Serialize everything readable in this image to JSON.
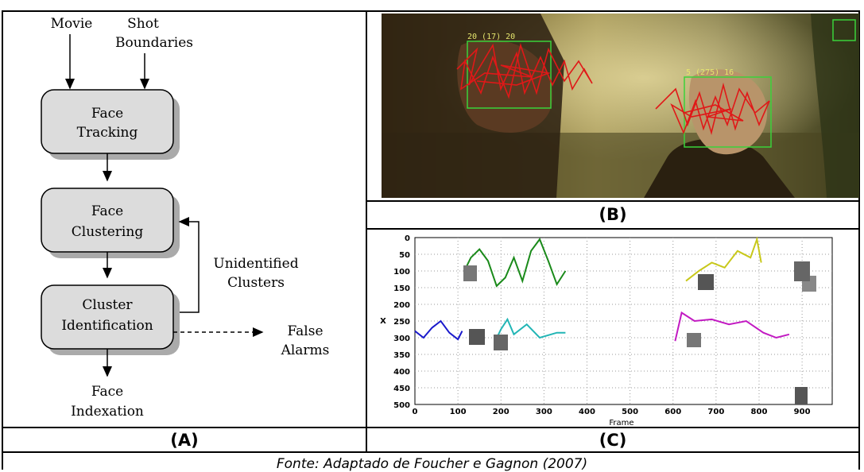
{
  "flowchart": {
    "inputs": [
      "Movie",
      "Shot",
      "Boundaries"
    ],
    "boxes": {
      "face_tracking": [
        "Face",
        "Tracking"
      ],
      "face_clustering": [
        "Face",
        "Clustering"
      ],
      "cluster_identification": [
        "Cluster",
        "Identification"
      ]
    },
    "feedback_label": [
      "Unidentified",
      "Clusters"
    ],
    "false_alarms": [
      "False",
      "Alarms"
    ],
    "output": [
      "Face",
      "Indexation"
    ]
  },
  "photo": {
    "track_labels": [
      "20 (17) 20",
      "5 (275) 16"
    ]
  },
  "captions": {
    "a": "(A)",
    "b": "(B)",
    "c": "(C)"
  },
  "source": "Fonte: Adaptado de Foucher e Gagnon (2007)",
  "chart_data": {
    "type": "line",
    "xlabel": "Frame",
    "ylabel": "X",
    "xlim": [
      0,
      970
    ],
    "ylim": [
      500,
      0
    ],
    "x_ticks": [
      "0",
      "100",
      "200",
      "300",
      "400",
      "500",
      "600",
      "700",
      "800",
      "900"
    ],
    "y_ticks": [
      "0",
      "50",
      "100",
      "150",
      "200",
      "250",
      "300",
      "350",
      "400",
      "450",
      "500"
    ],
    "grid": true,
    "colors": {
      "green": "#1a8a1a",
      "blue": "#1a1acc",
      "cyan": "#22b5b5",
      "yellow": "#c8c81a",
      "magenta": "#c21ac2"
    },
    "series": [
      {
        "color": "green",
        "x": [
          115,
          130,
          150,
          170,
          190,
          210,
          230,
          250,
          270,
          290,
          310,
          330,
          350
        ],
        "y": [
          100,
          60,
          35,
          70,
          145,
          120,
          60,
          130,
          40,
          5,
          70,
          140,
          100
        ]
      },
      {
        "color": "blue",
        "x": [
          0,
          20,
          40,
          60,
          80,
          100,
          110
        ],
        "y": [
          280,
          300,
          270,
          250,
          285,
          305,
          280
        ]
      },
      {
        "color": "cyan",
        "x": [
          185,
          200,
          215,
          230,
          260,
          290,
          330,
          350
        ],
        "y": [
          315,
          275,
          245,
          290,
          260,
          300,
          285,
          285
        ]
      },
      {
        "color": "yellow",
        "x": [
          630,
          660,
          690,
          720,
          750,
          780,
          795,
          805
        ],
        "y": [
          130,
          100,
          75,
          90,
          40,
          60,
          5,
          75
        ]
      },
      {
        "color": "magenta",
        "x": [
          605,
          620,
          650,
          690,
          730,
          770,
          810,
          840,
          870
        ],
        "y": [
          310,
          225,
          250,
          245,
          260,
          250,
          285,
          300,
          290
        ]
      }
    ]
  }
}
